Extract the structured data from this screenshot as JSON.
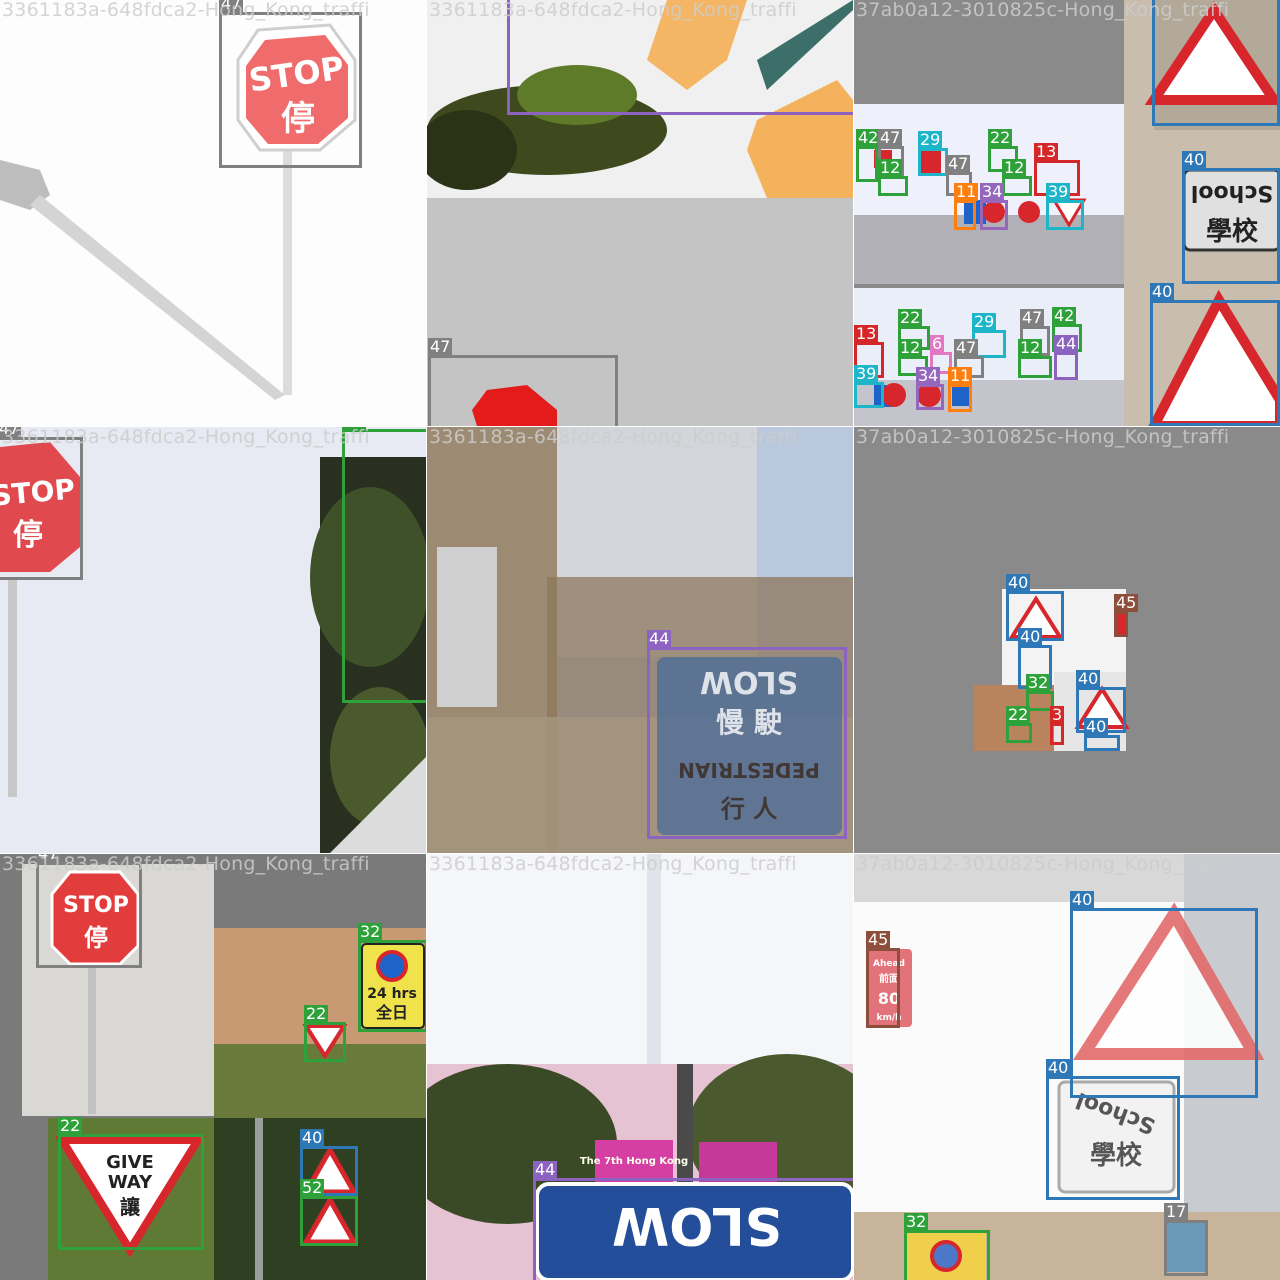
{
  "tiles": [
    {
      "title": "3361183a-648fdca2-Hong_Kong_traffi",
      "labels": [
        "47",
        "47"
      ]
    },
    {
      "title": "3361183a-648fdca2-Hong_Kong_traffi",
      "labels": [
        "47"
      ]
    },
    {
      "title": "37ab0a12-3010825c-Hong_Kong_traffi",
      "labels": [
        "40",
        "40",
        "42",
        "47",
        "29",
        "22",
        "47",
        "12",
        "12",
        "13",
        "11",
        "34",
        "39",
        "13",
        "22",
        "29",
        "47",
        "42",
        "12",
        "6",
        "47",
        "12",
        "44",
        "39",
        "34",
        "11"
      ]
    },
    {
      "title": "3361183a-648fdca2-Hong_Kong_traffi",
      "labels": [
        "47",
        "22"
      ]
    },
    {
      "title": "3361183a-648fdca2-Hong_Kong_traffi",
      "labels": [
        "44"
      ]
    },
    {
      "title": "37ab0a12-3010825c-Hong_Kong_traffi",
      "labels": [
        "40",
        "45",
        "40",
        "32",
        "40",
        "22",
        "3",
        "40"
      ]
    },
    {
      "title": "3361183a-648fdca2-Hong_Kong_traffi",
      "labels": [
        "47",
        "32",
        "22",
        "22",
        "40",
        "52"
      ]
    },
    {
      "title": "3361183a-648fdca2-Hong_Kong_traffi",
      "labels": [
        "44"
      ]
    },
    {
      "title": "37ab0a12-3010825c-Hong_Kong_traffi",
      "labels": [
        "45",
        "40",
        "40",
        "32",
        "17"
      ]
    }
  ],
  "signs": {
    "stop": "STOP",
    "stop_cn": "停",
    "school": "School",
    "school_cn": "學校",
    "slow": "SLOW",
    "slow_cn": "慢 駛",
    "pedestrian": "PEDESTRIAN",
    "pedestrian_cn": "行 人",
    "give_way_1": "GIVE",
    "give_way_2": "WAY",
    "give_way_cn": "讓",
    "hrs_1": "24 hrs",
    "hrs_2": "全日",
    "speed_ahead": "Ahead",
    "speed_ahead_cn": "前面",
    "speed_value": "80",
    "speed_unit": "km/h",
    "sevenths": "The 7th Hong Kong"
  }
}
